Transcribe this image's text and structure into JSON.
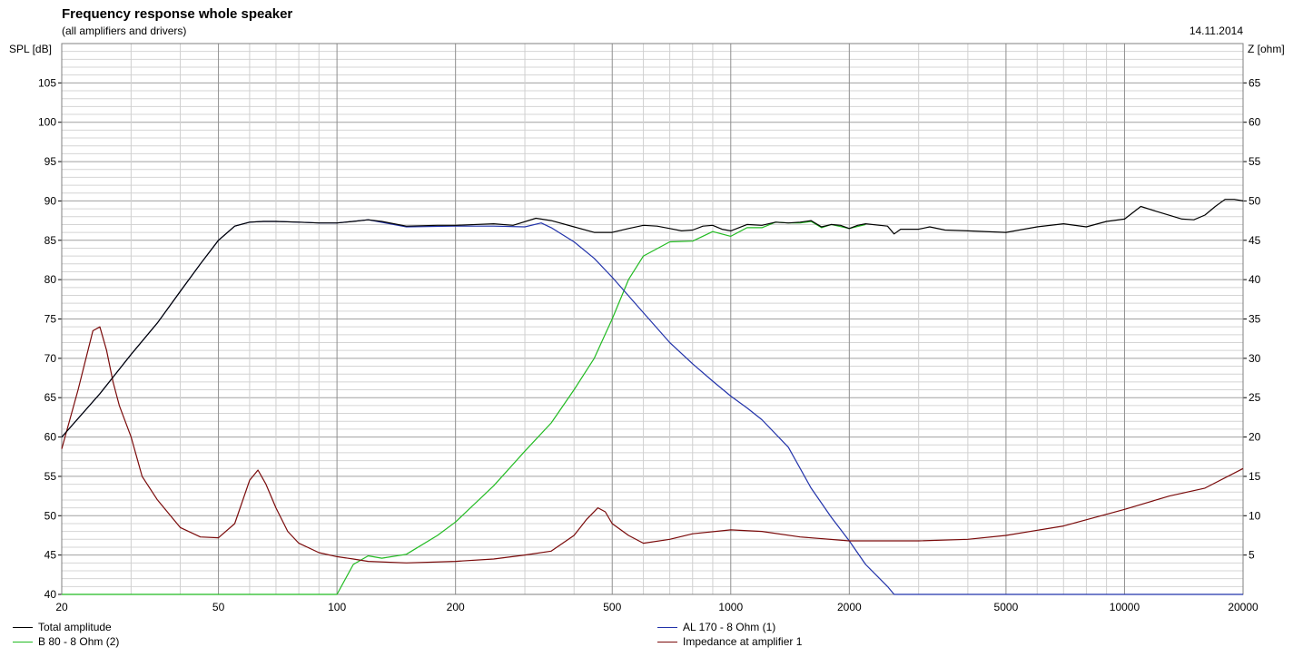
{
  "header": {
    "title": "Frequency response whole speaker",
    "subtitle": "(all amplifiers and drivers)",
    "date": "14.11.2014"
  },
  "axes": {
    "left_label": "SPL [dB]",
    "right_label": "Z [ohm]"
  },
  "legend": [
    {
      "label": "Total amplitude",
      "color": "#000000"
    },
    {
      "label": "B 80 - 8 Ohm (2)",
      "color": "#22bb22"
    },
    {
      "label": "AL 170 - 8 Ohm (1)",
      "color": "#2233aa"
    },
    {
      "label": "Impedance at amplifier 1",
      "color": "#7a0a0a"
    }
  ],
  "chart_data": {
    "type": "line",
    "xscale": "log",
    "xlim": [
      20,
      20000
    ],
    "ylim": [
      40,
      110
    ],
    "y2lim": [
      0,
      70
    ],
    "grid": true,
    "x_ticks": [
      20,
      50,
      100,
      200,
      500,
      1000,
      2000,
      5000,
      10000,
      20000
    ],
    "x_tick_labels": [
      "20",
      "50",
      "100",
      "200",
      "500",
      "1000",
      "2000",
      "5000",
      "10000",
      "20000"
    ],
    "y_ticks": [
      40,
      45,
      50,
      55,
      60,
      65,
      70,
      75,
      80,
      85,
      90,
      95,
      100,
      105
    ],
    "y_tick_labels": [
      "40",
      "45",
      "50",
      "55",
      "60",
      "65",
      "70",
      "75",
      "80",
      "85",
      "90",
      "95",
      "100",
      "105"
    ],
    "y2_ticks": [
      5,
      10,
      15,
      20,
      25,
      30,
      35,
      40,
      45,
      50,
      55,
      60,
      65
    ],
    "y2_tick_labels": [
      "5",
      "10",
      "15",
      "20",
      "25",
      "30",
      "35",
      "40",
      "45",
      "50",
      "55",
      "60",
      "65"
    ],
    "series": [
      {
        "name": "Total amplitude",
        "axis": "left",
        "color": "#000000",
        "x": [
          20,
          25,
          30,
          35,
          40,
          45,
          50,
          55,
          60,
          65,
          70,
          80,
          90,
          100,
          110,
          120,
          130,
          150,
          180,
          200,
          250,
          280,
          320,
          350,
          400,
          450,
          500,
          550,
          600,
          650,
          700,
          750,
          800,
          850,
          900,
          950,
          1000,
          1100,
          1200,
          1300,
          1400,
          1500,
          1600,
          1700,
          1800,
          1900,
          2000,
          2100,
          2200,
          2500,
          2600,
          2700,
          3000,
          3200,
          3500,
          4000,
          5000,
          6000,
          7000,
          8000,
          9000,
          10000,
          11000,
          12000,
          14000,
          15000,
          16000,
          17000,
          18000,
          19000,
          20000
        ],
        "y": [
          60,
          65.5,
          70.5,
          74.5,
          78.5,
          82,
          85,
          86.8,
          87.3,
          87.4,
          87.4,
          87.3,
          87.2,
          87.2,
          87.4,
          87.6,
          87.4,
          86.8,
          86.9,
          86.9,
          87.1,
          86.9,
          87.8,
          87.5,
          86.7,
          86,
          86,
          86.5,
          86.9,
          86.8,
          86.5,
          86.2,
          86.3,
          86.8,
          86.9,
          86.4,
          86.2,
          87,
          86.9,
          87.3,
          87.2,
          87.3,
          87.5,
          86.7,
          87,
          86.9,
          86.5,
          86.9,
          87.1,
          86.8,
          85.8,
          86.4,
          86.4,
          86.7,
          86.3,
          86.2,
          86,
          86.7,
          87.1,
          86.7,
          87.4,
          87.7,
          89.3,
          88.7,
          87.7,
          87.6,
          88.2,
          89.3,
          90.2,
          90.2,
          90
        ]
      },
      {
        "name": "B 80 - 8 Ohm (2)",
        "axis": "left",
        "color": "#22bb22",
        "x": [
          20,
          100,
          110,
          120,
          130,
          150,
          180,
          200,
          250,
          300,
          350,
          400,
          450,
          500,
          550,
          600,
          700,
          800,
          900,
          1000,
          1100,
          1200,
          1300,
          1400,
          1500,
          1600,
          1700,
          1800,
          2000,
          2200
        ],
        "y": [
          40,
          40,
          43.8,
          44.9,
          44.6,
          45.1,
          47.5,
          49.2,
          53.8,
          58.2,
          61.8,
          66,
          70,
          75,
          80,
          83,
          84.8,
          84.9,
          86.1,
          85.5,
          86.6,
          86.6,
          87.3,
          87.2,
          87.2,
          87.4,
          86.6,
          87,
          86.5,
          87
        ]
      },
      {
        "name": "AL 170 - 8 Ohm (1)",
        "axis": "left",
        "color": "#2233aa",
        "x": [
          20,
          25,
          30,
          35,
          40,
          45,
          50,
          55,
          60,
          65,
          70,
          80,
          90,
          100,
          120,
          150,
          200,
          250,
          300,
          330,
          350,
          400,
          450,
          500,
          600,
          700,
          800,
          900,
          1000,
          1100,
          1200,
          1400,
          1600,
          1800,
          2000,
          2200,
          2500,
          2600,
          20000
        ],
        "y": [
          60,
          65.5,
          70.5,
          74.5,
          78.5,
          82,
          85,
          86.8,
          87.3,
          87.4,
          87.4,
          87.3,
          87.2,
          87.2,
          87.6,
          86.7,
          86.8,
          86.8,
          86.7,
          87.2,
          86.6,
          84.8,
          82.7,
          80.3,
          75.8,
          72,
          69.3,
          67.1,
          65.2,
          63.7,
          62.2,
          58.7,
          53.5,
          49.8,
          46.8,
          43.8,
          41,
          40,
          40
        ]
      },
      {
        "name": "Impedance at amplifier 1",
        "axis": "right",
        "color": "#7a0a0a",
        "x": [
          20,
          22,
          24,
          25,
          26,
          27,
          28,
          30,
          32,
          35,
          40,
          45,
          50,
          55,
          60,
          63,
          66,
          70,
          75,
          80,
          90,
          100,
          110,
          120,
          150,
          200,
          250,
          300,
          350,
          400,
          430,
          460,
          480,
          500,
          550,
          600,
          700,
          800,
          1000,
          1200,
          1500,
          2000,
          2500,
          3000,
          4000,
          5000,
          7000,
          10000,
          13000,
          16000,
          20000
        ],
        "y": [
          18.5,
          26,
          33.5,
          34,
          31,
          27,
          24,
          20,
          15,
          12,
          8.5,
          7.3,
          7.2,
          9,
          14.5,
          15.8,
          14,
          11,
          8,
          6.5,
          5.3,
          4.8,
          4.5,
          4.2,
          4,
          4.2,
          4.5,
          5,
          5.5,
          7.5,
          9.5,
          11,
          10.5,
          9,
          7.5,
          6.5,
          7,
          7.7,
          8.2,
          8,
          7.3,
          6.8,
          6.8,
          6.8,
          7,
          7.5,
          8.7,
          10.8,
          12.5,
          13.5,
          16
        ]
      }
    ]
  }
}
